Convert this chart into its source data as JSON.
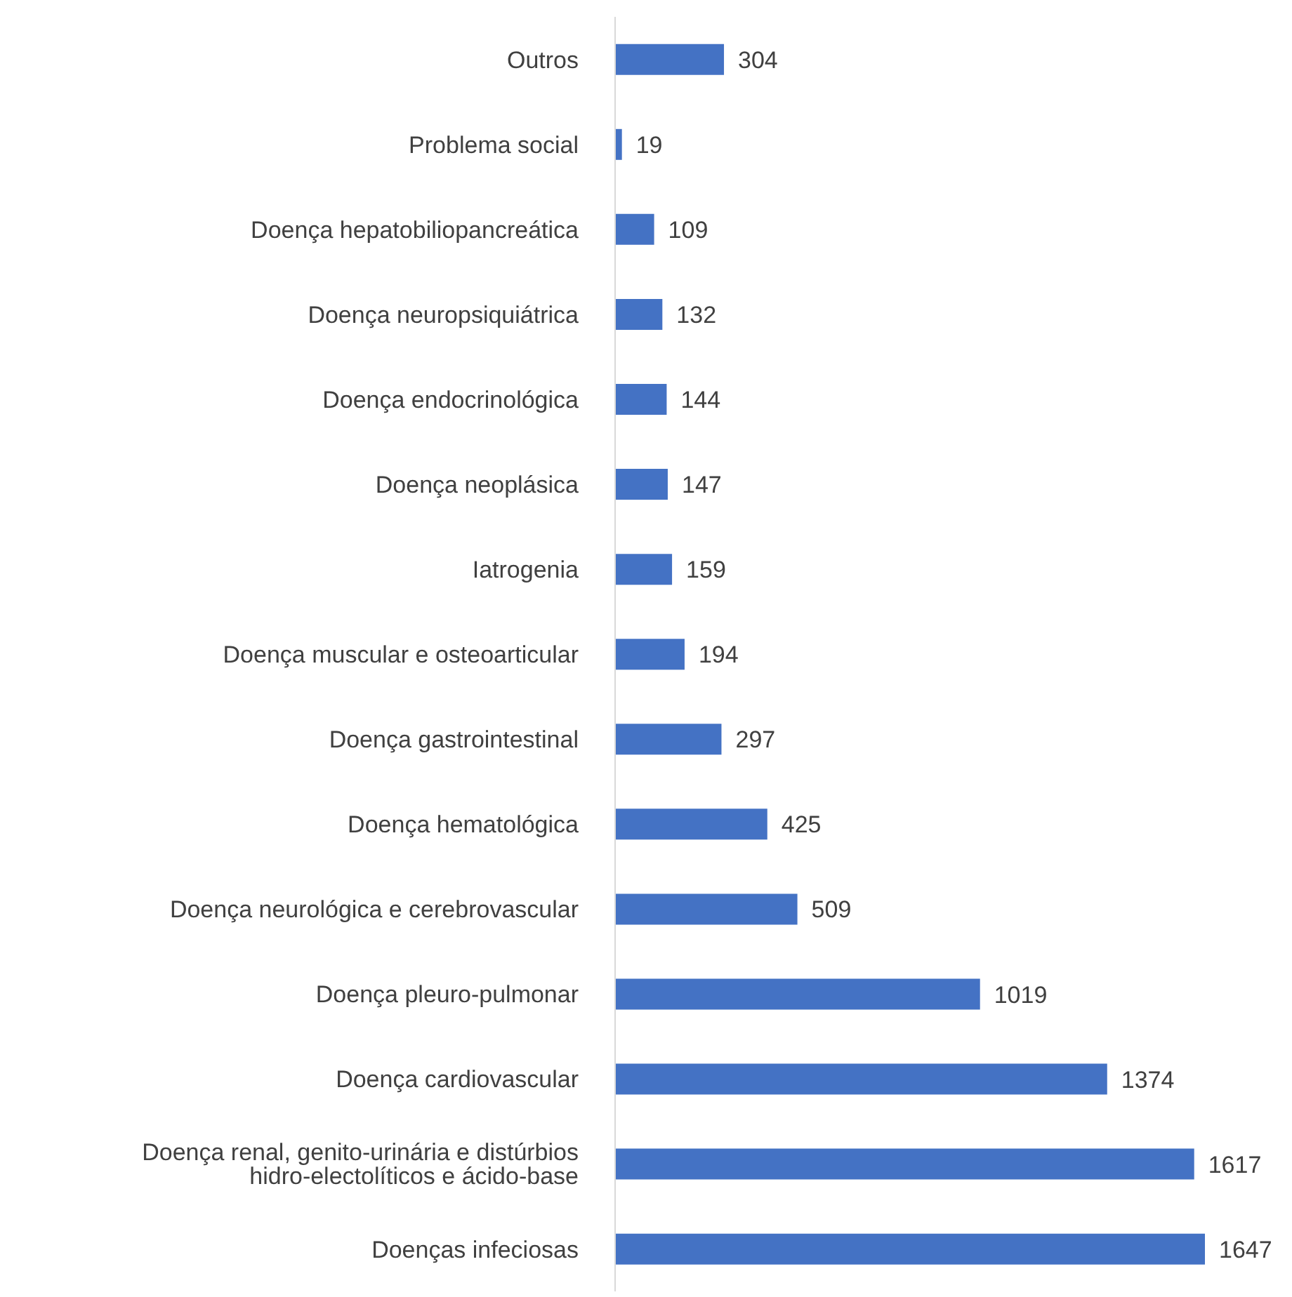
{
  "chart_data": {
    "type": "bar",
    "orientation": "horizontal",
    "data_labels": true,
    "color": "#4472c4",
    "categories": [
      "Outros",
      "Problema social",
      "Doença hepatobiliopancreática",
      "Doença neuropsiquiátrica",
      "Doença endocrinológica",
      "Doença neoplásica",
      "Iatrogenia",
      "Doença muscular e osteoarticular",
      "Doença gastrointestinal",
      "Doença hematológica",
      "Doença neurológica e cerebrovascular",
      "Doença pleuro-pulmonar",
      "Doença cardiovascular",
      "Doença renal, genito-urinária e distúrbios hidro-electolíticos e ácido-base",
      "Doenças infeciosas"
    ],
    "values": [
      304,
      19,
      109,
      132,
      144,
      147,
      159,
      194,
      297,
      425,
      509,
      1019,
      1374,
      1617,
      1647
    ]
  }
}
